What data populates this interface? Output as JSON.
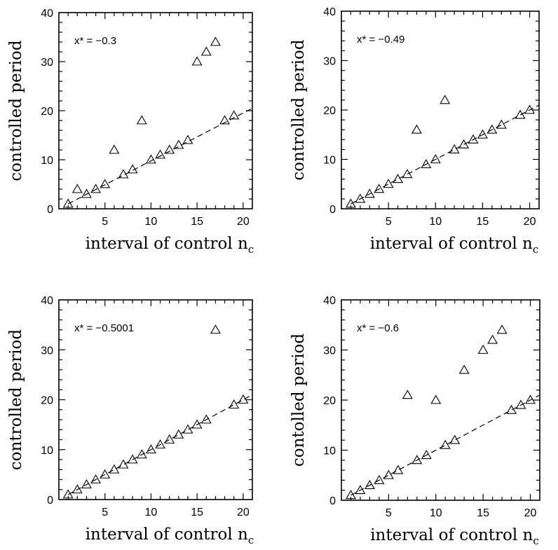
{
  "chart_data": [
    {
      "type": "scatter",
      "annotation": "x* = −0.3",
      "xlabel": "interval of control n",
      "xlabel_sub": "c",
      "ylabel": "controlled period",
      "xlim": [
        0,
        21
      ],
      "ylim": [
        0,
        40
      ],
      "xticks": [
        5,
        10,
        15,
        20
      ],
      "yticks": [
        0,
        10,
        20,
        30,
        40
      ],
      "points": [
        [
          1,
          1
        ],
        [
          2,
          4
        ],
        [
          3,
          3
        ],
        [
          4,
          4
        ],
        [
          5,
          5
        ],
        [
          6,
          12
        ],
        [
          7,
          7
        ],
        [
          8,
          8
        ],
        [
          9,
          18
        ],
        [
          10,
          10
        ],
        [
          11,
          11
        ],
        [
          12,
          12
        ],
        [
          13,
          13
        ],
        [
          14,
          14
        ],
        [
          15,
          30
        ],
        [
          16,
          32
        ],
        [
          17,
          34
        ],
        [
          18,
          18
        ],
        [
          19,
          19
        ]
      ],
      "fit_line": [
        [
          1,
          1
        ],
        [
          21,
          20.5
        ]
      ]
    },
    {
      "type": "scatter",
      "annotation": "x* = −0.49",
      "xlabel": "interval of control n",
      "xlabel_sub": "c",
      "ylabel": "controlled period",
      "xlim": [
        0,
        21
      ],
      "ylim": [
        0,
        40
      ],
      "xticks": [
        5,
        10,
        15,
        20
      ],
      "yticks": [
        0,
        10,
        20,
        30,
        40
      ],
      "points": [
        [
          1,
          1
        ],
        [
          2,
          2
        ],
        [
          3,
          3
        ],
        [
          4,
          4
        ],
        [
          5,
          5
        ],
        [
          6,
          6
        ],
        [
          7,
          7
        ],
        [
          8,
          16
        ],
        [
          9,
          9
        ],
        [
          10,
          10
        ],
        [
          11,
          22
        ],
        [
          12,
          12
        ],
        [
          13,
          13
        ],
        [
          14,
          14
        ],
        [
          15,
          15
        ],
        [
          16,
          16
        ],
        [
          17,
          17
        ],
        [
          19,
          19
        ],
        [
          20,
          20
        ]
      ],
      "fit_line": [
        [
          1,
          1
        ],
        [
          21,
          21
        ]
      ]
    },
    {
      "type": "scatter",
      "annotation": "x* = −0.5001",
      "xlabel": "interval of control n",
      "xlabel_sub": "c",
      "ylabel": "controlled period",
      "xlim": [
        0,
        21
      ],
      "ylim": [
        0,
        40
      ],
      "xticks": [
        5,
        10,
        15,
        20
      ],
      "yticks": [
        0,
        10,
        20,
        30,
        40
      ],
      "points": [
        [
          1,
          1
        ],
        [
          2,
          2
        ],
        [
          3,
          3
        ],
        [
          4,
          4
        ],
        [
          5,
          5
        ],
        [
          6,
          6
        ],
        [
          7,
          7
        ],
        [
          8,
          8
        ],
        [
          9,
          9
        ],
        [
          10,
          10
        ],
        [
          11,
          11
        ],
        [
          12,
          12
        ],
        [
          13,
          13
        ],
        [
          14,
          14
        ],
        [
          15,
          15
        ],
        [
          16,
          16
        ],
        [
          17,
          34
        ],
        [
          19,
          19
        ],
        [
          20,
          20
        ]
      ],
      "fit_line": [
        [
          1,
          1
        ],
        [
          21,
          21
        ]
      ]
    },
    {
      "type": "scatter",
      "annotation": "x* = −0.6",
      "xlabel": "interval of control n",
      "xlabel_sub": "c",
      "ylabel": "contolled period",
      "xlim": [
        0,
        21
      ],
      "ylim": [
        0,
        40
      ],
      "xticks": [
        5,
        10,
        15,
        20
      ],
      "yticks": [
        0,
        10,
        20,
        30,
        40
      ],
      "points": [
        [
          1,
          1
        ],
        [
          2,
          2
        ],
        [
          3,
          3
        ],
        [
          4,
          4
        ],
        [
          5,
          5
        ],
        [
          6,
          6
        ],
        [
          7,
          21
        ],
        [
          8,
          8
        ],
        [
          9,
          9
        ],
        [
          10,
          20
        ],
        [
          11,
          11
        ],
        [
          12,
          12
        ],
        [
          13,
          26
        ],
        [
          15,
          30
        ],
        [
          16,
          32
        ],
        [
          17,
          34
        ],
        [
          18,
          18
        ],
        [
          19,
          19
        ],
        [
          20,
          20
        ]
      ],
      "fit_line": [
        [
          1,
          1
        ],
        [
          21,
          21
        ]
      ]
    }
  ]
}
